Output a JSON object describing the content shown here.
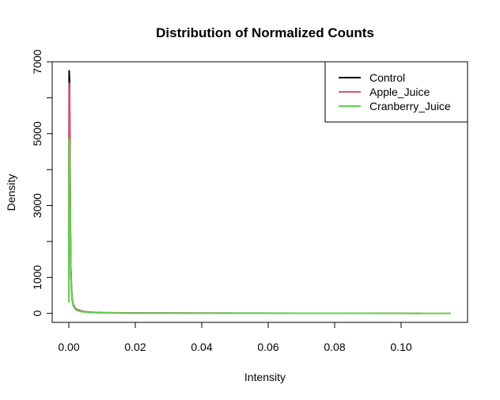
{
  "chart_data": {
    "type": "line",
    "title": "Distribution of Normalized Counts",
    "xlabel": "Intensity",
    "ylabel": "Density",
    "xlim": [
      -0.005,
      0.12
    ],
    "ylim": [
      -250,
      7000
    ],
    "x_ticks": [
      0.0,
      0.02,
      0.04,
      0.06,
      0.08,
      0.1
    ],
    "x_tick_labels": [
      "0.00",
      "0.02",
      "0.04",
      "0.06",
      "0.08",
      "0.10"
    ],
    "y_ticks": [
      0,
      1000,
      3000,
      5000,
      7000
    ],
    "y_tick_labels": [
      "0",
      "1000",
      "3000",
      "5000",
      "7000"
    ],
    "y_minor_ticks": [
      2000,
      4000,
      6000
    ],
    "grid": false,
    "legend_position": "top-right",
    "series": [
      {
        "name": "Control",
        "color": "#000000",
        "x": [
          0.0,
          0.0001,
          0.0002,
          0.0003,
          0.0004,
          0.0005,
          0.0006,
          0.0008,
          0.001,
          0.0013,
          0.0018,
          0.0025,
          0.004,
          0.006,
          0.01,
          0.02,
          0.05,
          0.08,
          0.1,
          0.106
        ],
        "y": [
          500,
          6750,
          6500,
          5200,
          3600,
          2200,
          1300,
          700,
          400,
          250,
          150,
          100,
          60,
          35,
          20,
          10,
          5,
          3,
          2,
          1
        ]
      },
      {
        "name": "Apple_Juice",
        "color": "#DF536B",
        "x": [
          0.0,
          0.0001,
          0.0002,
          0.0003,
          0.0004,
          0.0005,
          0.0006,
          0.0008,
          0.001,
          0.0013,
          0.0018,
          0.0025,
          0.004,
          0.006,
          0.01,
          0.02,
          0.05,
          0.08,
          0.098,
          0.106
        ],
        "y": [
          400,
          6400,
          6200,
          5000,
          3400,
          2100,
          1200,
          650,
          380,
          230,
          140,
          90,
          55,
          30,
          18,
          8,
          4,
          3,
          4,
          2
        ]
      },
      {
        "name": "Cranberry_Juice",
        "color": "#61D04F",
        "x": [
          0.0,
          0.0001,
          0.0002,
          0.0003,
          0.0004,
          0.0005,
          0.0006,
          0.0008,
          0.001,
          0.0013,
          0.0018,
          0.0025,
          0.004,
          0.006,
          0.01,
          0.02,
          0.05,
          0.08,
          0.1,
          0.115
        ],
        "y": [
          300,
          4850,
          4700,
          4000,
          3000,
          1950,
          1200,
          650,
          380,
          220,
          130,
          80,
          45,
          25,
          15,
          7,
          3,
          2,
          1,
          0
        ]
      }
    ]
  }
}
